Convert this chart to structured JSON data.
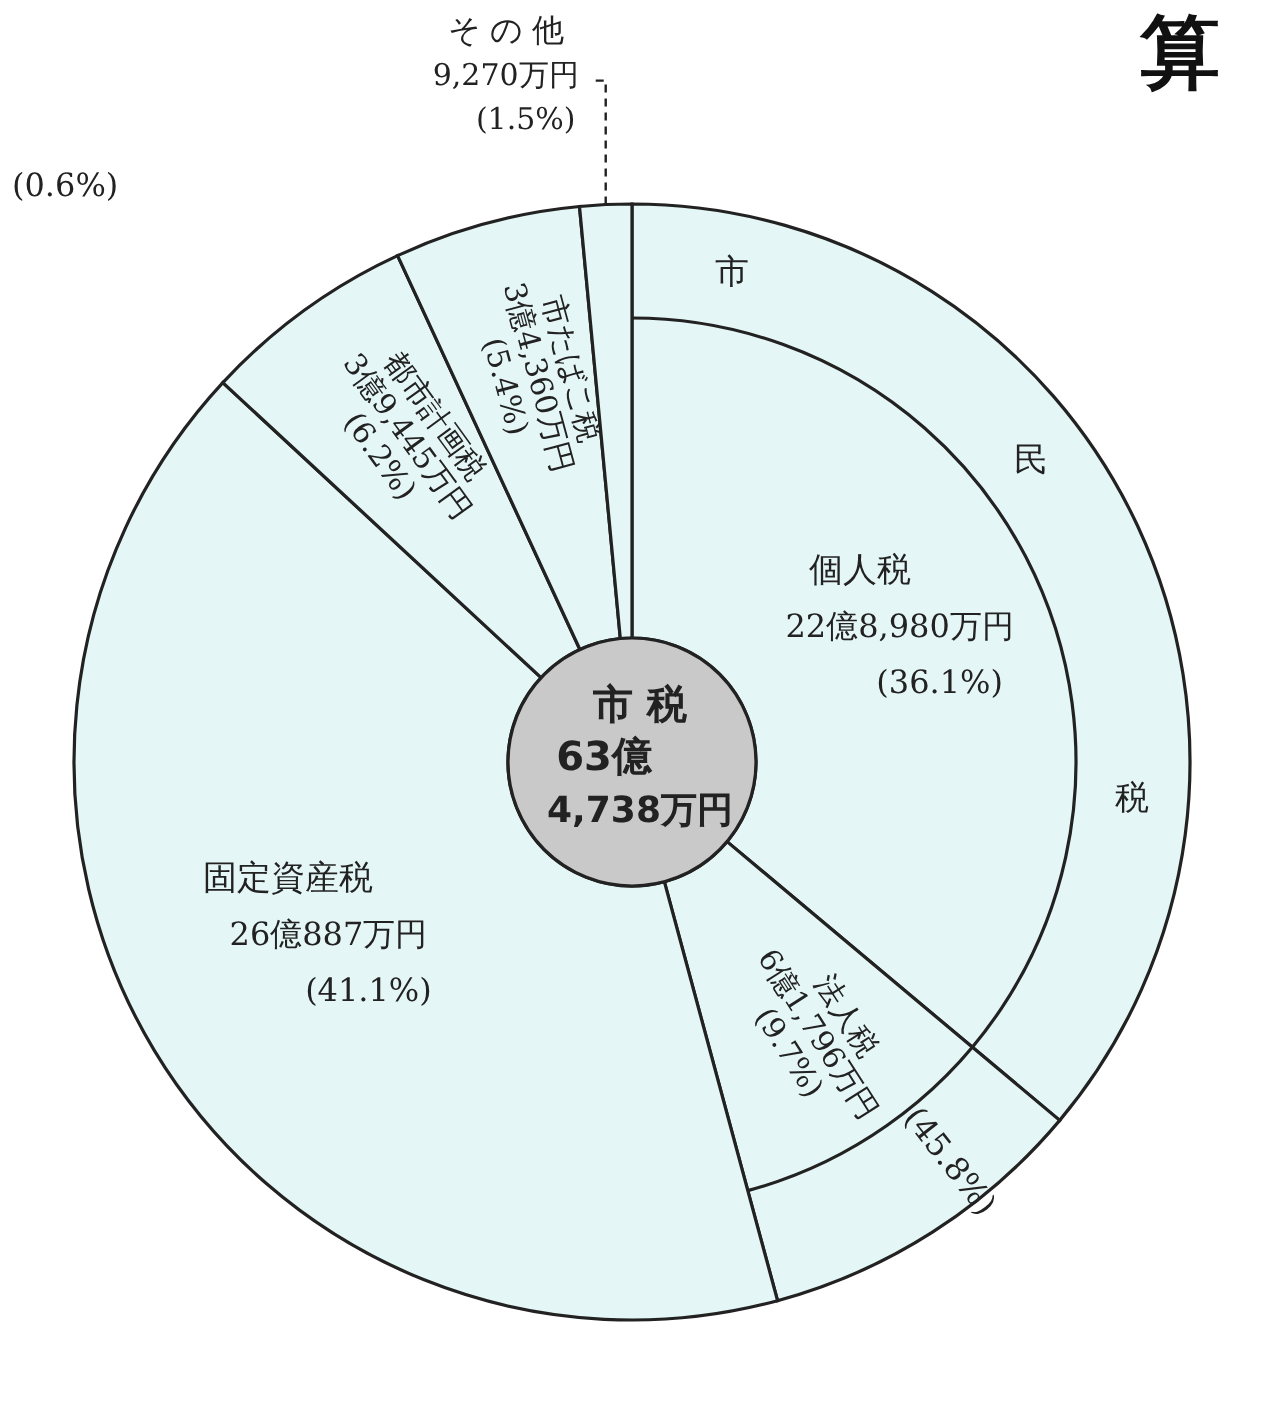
{
  "chart_data": {
    "type": "donut",
    "title": "算",
    "categories": [
      "個人税",
      "法人税",
      "固定資産税",
      "都市計画税",
      "市たばこ税",
      "その他"
    ],
    "values": [
      36.1,
      9.7,
      41.1,
      6.2,
      5.4,
      1.5
    ],
    "value_labels": [
      "22億8,980万円 (36.1%)",
      "6億1,796万円 (9.7%)",
      "26億887万円 (41.1%)",
      "3億9,445万円 (6.2%)",
      "3億4,360万円 (5.4%)",
      "9,270万円 (1.5%)"
    ],
    "colors": [
      "#e4f6f5",
      "#e4f6f5",
      "#e4f6f5",
      "#e4f6f5",
      "#e4f6f5",
      "#e4f6f5"
    ],
    "annotations": [
      "市 税",
      "63億 4,738万円",
      "(0.6%)",
      "市",
      "民",
      "税",
      "(45.8%)"
    ]
  }
}
